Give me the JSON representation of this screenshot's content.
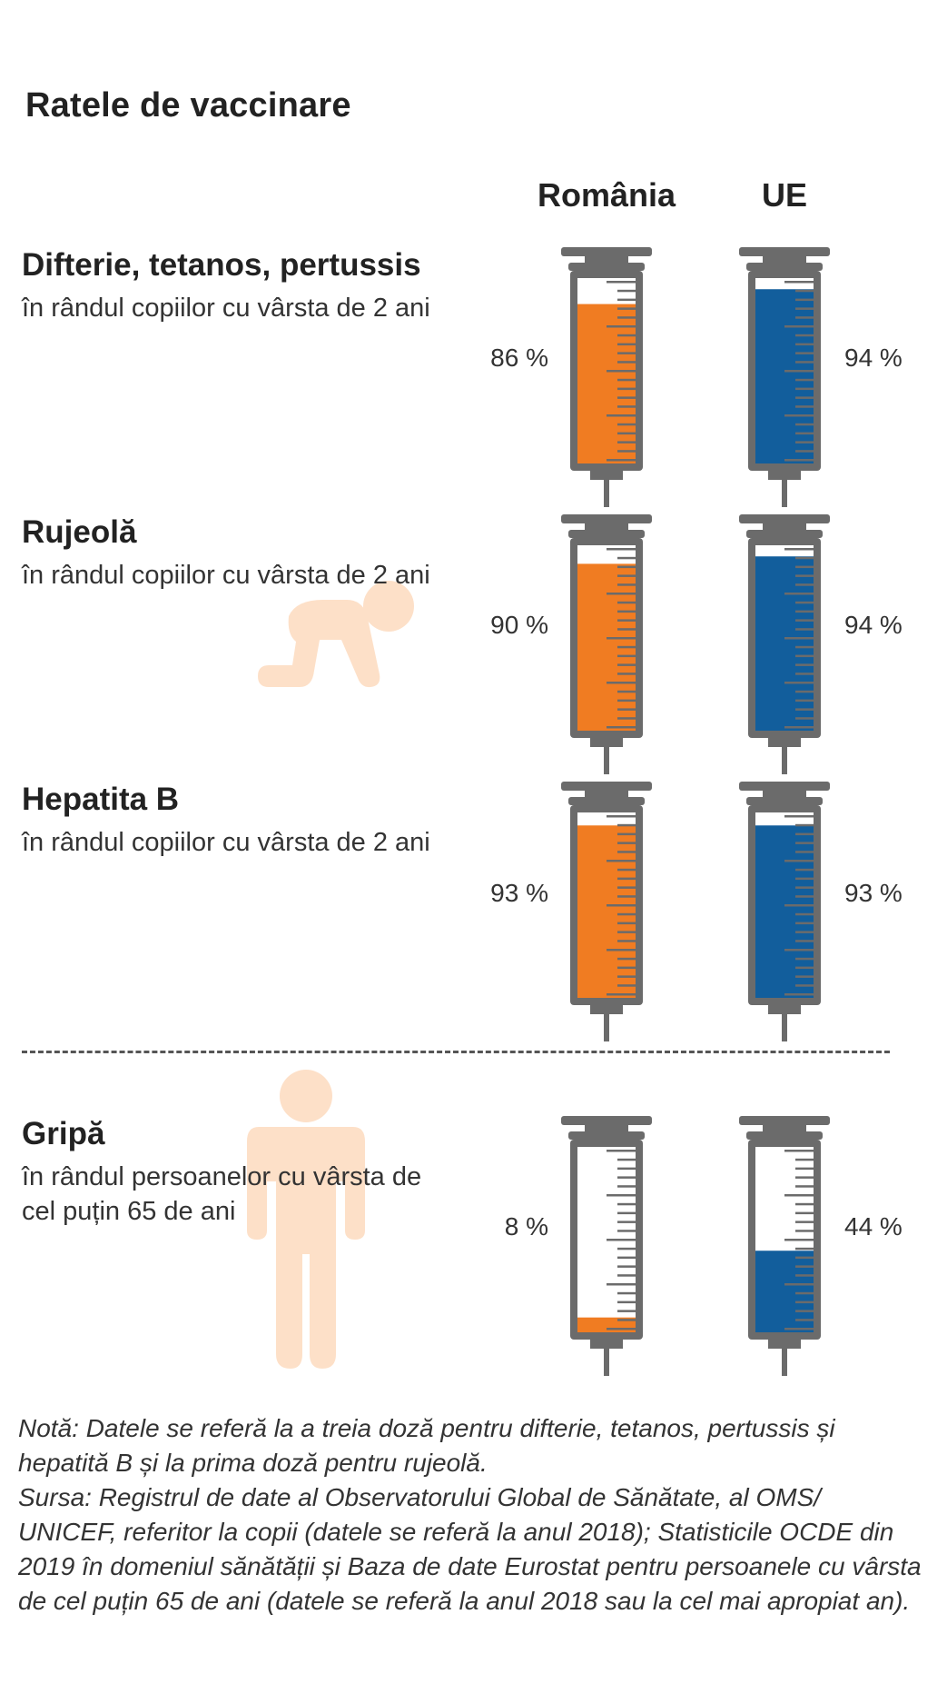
{
  "title": "Ratele de vaccinare",
  "columns": [
    "România",
    "UE"
  ],
  "colors": {
    "romania": "#f07c22",
    "eu": "#125e9c",
    "syringe": "#6b6b6b",
    "figure": "#fde0c8"
  },
  "rows": [
    {
      "name": "Difterie, tetanos, pertussis",
      "subtitle": "în rândul copiilor cu vârsta de 2 ani",
      "romania_label": "86 %",
      "eu_label": "94 %"
    },
    {
      "name": "Rujeolă",
      "subtitle": "în rândul copiilor cu vârsta de 2 ani",
      "romania_label": "90 %",
      "eu_label": "94 %"
    },
    {
      "name": "Hepatita B",
      "subtitle": "în rândul copiilor cu vârsta de 2 ani",
      "romania_label": "93 %",
      "eu_label": "93 %"
    },
    {
      "name": "Gripă",
      "subtitle": "în rândul persoanelor cu vârsta de cel puțin 65 de ani",
      "romania_label": "8 %",
      "eu_label": "44 %"
    }
  ],
  "note": "Notă: Datele se referă la a treia doză pentru difterie, tetanos, pertussis și hepatită B și la prima doză pentru rujeolă.",
  "source": "Sursa: Registrul de date al Observatorului Global de Sănătate, al OMS/ UNICEF, referitor la copii (datele se referă la anul 2018); Statisticile OCDE din 2019 în domeniul sănătății și Baza de date Eurostat pentru persoanele cu vârsta de cel puțin 65 de ani (datele se referă la anul 2018 sau la cel mai apropiat an).",
  "chart_data": {
    "type": "bar",
    "title": "Ratele de vaccinare",
    "categories": [
      "Difterie, tetanos, pertussis",
      "Rujeolă",
      "Hepatita B",
      "Gripă"
    ],
    "series": [
      {
        "name": "România",
        "values": [
          86,
          90,
          93,
          8
        ]
      },
      {
        "name": "UE",
        "values": [
          94,
          94,
          93,
          44
        ]
      }
    ],
    "ylim": [
      0,
      100
    ]
  }
}
